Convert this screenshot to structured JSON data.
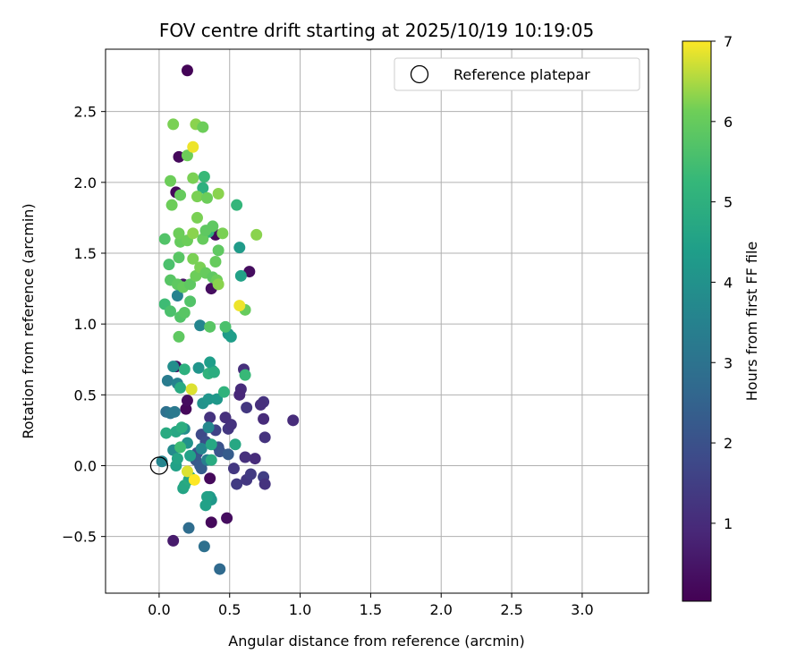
{
  "chart_data": {
    "type": "scatter",
    "title": "FOV centre drift starting at 2025/10/19 10:19:05",
    "xlabel": "Angular distance from reference (arcmin)",
    "ylabel": "Rotation from reference (arcmin)",
    "xlim": [
      -0.38,
      3.47
    ],
    "ylim": [
      -0.9,
      2.94
    ],
    "xticks": [
      0.0,
      0.5,
      1.0,
      1.5,
      2.0,
      2.5,
      3.0
    ],
    "xtick_labels": [
      "0.0",
      "0.5",
      "1.0",
      "1.5",
      "2.0",
      "2.5",
      "3.0"
    ],
    "yticks": [
      -0.5,
      0.0,
      0.5,
      1.0,
      1.5,
      2.0,
      2.5
    ],
    "ytick_labels": [
      "−0.5",
      "0.0",
      "0.5",
      "1.0",
      "1.5",
      "2.0",
      "2.5"
    ],
    "grid": true,
    "legend": {
      "position": "top-right",
      "entries": [
        "Reference platepar"
      ]
    },
    "colorbar": {
      "label": "Hours from first FF file",
      "colormap": "viridis",
      "range": [
        0.03,
        7.0
      ],
      "ticks": [
        1,
        2,
        3,
        4,
        5,
        6,
        7
      ],
      "tick_labels": [
        "1",
        "2",
        "3",
        "4",
        "5",
        "6",
        "7"
      ]
    },
    "reference_point": {
      "x": 0.0,
      "y": 0.0
    },
    "points": [
      {
        "x": 0.2,
        "y": 2.79,
        "h": 0.1
      },
      {
        "x": 0.14,
        "y": 2.18,
        "h": 0.2
      },
      {
        "x": 0.12,
        "y": 1.93,
        "h": 0.2
      },
      {
        "x": 0.4,
        "y": 1.63,
        "h": 0.2
      },
      {
        "x": 0.64,
        "y": 1.37,
        "h": 0.3
      },
      {
        "x": 0.17,
        "y": 1.28,
        "h": 0.4
      },
      {
        "x": 0.37,
        "y": 1.25,
        "h": 0.3
      },
      {
        "x": 0.12,
        "y": 0.7,
        "h": 0.3
      },
      {
        "x": 0.19,
        "y": 0.4,
        "h": 0.2
      },
      {
        "x": 0.2,
        "y": 0.46,
        "h": 0.3
      },
      {
        "x": 0.36,
        "y": -0.09,
        "h": 0.2
      },
      {
        "x": 0.37,
        "y": -0.4,
        "h": 0.2
      },
      {
        "x": 0.48,
        "y": -0.37,
        "h": 0.3
      },
      {
        "x": 0.1,
        "y": -0.53,
        "h": 0.6
      },
      {
        "x": 0.95,
        "y": 0.32,
        "h": 1.0
      },
      {
        "x": 0.74,
        "y": 0.45,
        "h": 1.2
      },
      {
        "x": 0.72,
        "y": 0.43,
        "h": 1.1
      },
      {
        "x": 0.74,
        "y": 0.33,
        "h": 1.0
      },
      {
        "x": 0.75,
        "y": 0.2,
        "h": 1.2
      },
      {
        "x": 0.68,
        "y": 0.05,
        "h": 1.0
      },
      {
        "x": 0.61,
        "y": 0.06,
        "h": 1.1
      },
      {
        "x": 0.58,
        "y": 0.54,
        "h": 1.0
      },
      {
        "x": 0.57,
        "y": 0.5,
        "h": 0.9
      },
      {
        "x": 0.6,
        "y": 0.68,
        "h": 1.1
      },
      {
        "x": 0.62,
        "y": 0.41,
        "h": 1.3
      },
      {
        "x": 0.49,
        "y": 0.26,
        "h": 1.3
      },
      {
        "x": 0.51,
        "y": 0.29,
        "h": 1.2
      },
      {
        "x": 0.47,
        "y": 0.34,
        "h": 1.1
      },
      {
        "x": 0.53,
        "y": -0.02,
        "h": 1.3
      },
      {
        "x": 0.55,
        "y": -0.13,
        "h": 1.4
      },
      {
        "x": 0.62,
        "y": -0.1,
        "h": 1.3
      },
      {
        "x": 0.65,
        "y": -0.06,
        "h": 1.4
      },
      {
        "x": 0.74,
        "y": -0.08,
        "h": 1.5
      },
      {
        "x": 0.75,
        "y": -0.13,
        "h": 1.2
      },
      {
        "x": 0.36,
        "y": 0.34,
        "h": 1.2
      },
      {
        "x": 0.4,
        "y": 0.25,
        "h": 1.6
      },
      {
        "x": 0.3,
        "y": 0.22,
        "h": 1.8
      },
      {
        "x": 0.33,
        "y": 0.17,
        "h": 1.9
      },
      {
        "x": 0.42,
        "y": 0.13,
        "h": 2.0
      },
      {
        "x": 0.27,
        "y": 0.09,
        "h": 2.0
      },
      {
        "x": 0.43,
        "y": 0.1,
        "h": 2.1
      },
      {
        "x": 0.49,
        "y": 0.08,
        "h": 2.3
      },
      {
        "x": 0.26,
        "y": 0.04,
        "h": 2.2
      },
      {
        "x": 0.29,
        "y": 0.0,
        "h": 2.3
      },
      {
        "x": 0.3,
        "y": -0.02,
        "h": 2.3
      },
      {
        "x": 0.21,
        "y": -0.44,
        "h": 2.8
      },
      {
        "x": 0.32,
        "y": -0.57,
        "h": 2.9
      },
      {
        "x": 0.43,
        "y": -0.73,
        "h": 2.7
      },
      {
        "x": 0.05,
        "y": 0.38,
        "h": 2.9
      },
      {
        "x": 0.08,
        "y": 0.37,
        "h": 3.1
      },
      {
        "x": 0.11,
        "y": 0.38,
        "h": 3.2
      },
      {
        "x": 0.06,
        "y": 0.6,
        "h": 3.3
      },
      {
        "x": 0.13,
        "y": 0.58,
        "h": 3.5
      },
      {
        "x": 0.13,
        "y": 1.2,
        "h": 3.5
      },
      {
        "x": 0.29,
        "y": 0.99,
        "h": 3.6
      },
      {
        "x": 0.16,
        "y": 0.26,
        "h": 3.6
      },
      {
        "x": 0.3,
        "y": 0.12,
        "h": 3.6
      },
      {
        "x": 0.34,
        "y": 0.04,
        "h": 3.4
      },
      {
        "x": 0.35,
        "y": 0.27,
        "h": 3.7
      },
      {
        "x": 0.02,
        "y": 0.03,
        "h": 3.6
      },
      {
        "x": 0.1,
        "y": 0.11,
        "h": 3.8
      },
      {
        "x": 0.18,
        "y": 0.26,
        "h": 3.9
      },
      {
        "x": 0.2,
        "y": 0.16,
        "h": 4.0
      },
      {
        "x": 0.31,
        "y": 0.44,
        "h": 4.0
      },
      {
        "x": 0.35,
        "y": 0.47,
        "h": 4.1
      },
      {
        "x": 0.41,
        "y": 0.47,
        "h": 4.2
      },
      {
        "x": 0.28,
        "y": 0.69,
        "h": 4.1
      },
      {
        "x": 0.1,
        "y": 0.7,
        "h": 3.9
      },
      {
        "x": 0.38,
        "y": 0.67,
        "h": 4.3
      },
      {
        "x": 0.49,
        "y": 0.93,
        "h": 4.2
      },
      {
        "x": 0.51,
        "y": 0.91,
        "h": 4.4
      },
      {
        "x": 0.57,
        "y": 1.54,
        "h": 4.3
      },
      {
        "x": 0.58,
        "y": 1.34,
        "h": 4.5
      },
      {
        "x": 0.36,
        "y": 0.73,
        "h": 4.4
      },
      {
        "x": 0.36,
        "y": -0.22,
        "h": 4.3
      },
      {
        "x": 0.37,
        "y": -0.24,
        "h": 4.2
      },
      {
        "x": 0.34,
        "y": -0.22,
        "h": 4.5
      },
      {
        "x": 0.33,
        "y": -0.28,
        "h": 4.5
      },
      {
        "x": 0.17,
        "y": -0.16,
        "h": 4.6
      },
      {
        "x": 0.18,
        "y": -0.14,
        "h": 4.7
      },
      {
        "x": 0.21,
        "y": -0.1,
        "h": 4.8
      },
      {
        "x": 0.22,
        "y": -0.08,
        "h": 4.6
      },
      {
        "x": 0.12,
        "y": 0.0,
        "h": 4.5
      },
      {
        "x": 0.13,
        "y": 0.05,
        "h": 4.6
      },
      {
        "x": 0.22,
        "y": 0.07,
        "h": 4.5
      },
      {
        "x": 0.37,
        "y": 0.15,
        "h": 4.7
      },
      {
        "x": 0.37,
        "y": 0.04,
        "h": 4.8
      },
      {
        "x": 0.54,
        "y": 0.15,
        "h": 4.7
      },
      {
        "x": 0.12,
        "y": 0.24,
        "h": 4.7
      },
      {
        "x": 0.05,
        "y": 0.23,
        "h": 4.8
      },
      {
        "x": 0.16,
        "y": 0.27,
        "h": 4.9
      },
      {
        "x": 0.15,
        "y": 0.55,
        "h": 4.8
      },
      {
        "x": 0.18,
        "y": 0.68,
        "h": 5.0
      },
      {
        "x": 0.35,
        "y": 0.65,
        "h": 5.1
      },
      {
        "x": 0.39,
        "y": 0.66,
        "h": 4.9
      },
      {
        "x": 0.46,
        "y": 0.52,
        "h": 5.1
      },
      {
        "x": 0.55,
        "y": 1.84,
        "h": 5.2
      },
      {
        "x": 0.31,
        "y": 1.96,
        "h": 5.0
      },
      {
        "x": 0.35,
        "y": 1.65,
        "h": 5.1
      },
      {
        "x": 0.32,
        "y": 2.04,
        "h": 5.3
      },
      {
        "x": 0.61,
        "y": 0.64,
        "h": 5.3
      },
      {
        "x": 0.04,
        "y": 1.14,
        "h": 5.4
      },
      {
        "x": 0.15,
        "y": 0.13,
        "h": 5.4
      },
      {
        "x": 0.08,
        "y": 1.09,
        "h": 5.6
      },
      {
        "x": 0.15,
        "y": 1.05,
        "h": 5.7
      },
      {
        "x": 0.18,
        "y": 1.08,
        "h": 5.8
      },
      {
        "x": 0.22,
        "y": 1.16,
        "h": 5.7
      },
      {
        "x": 0.36,
        "y": 0.98,
        "h": 5.8
      },
      {
        "x": 0.47,
        "y": 0.98,
        "h": 5.6
      },
      {
        "x": 0.14,
        "y": 0.91,
        "h": 5.9
      },
      {
        "x": 0.61,
        "y": 1.1,
        "h": 6.0
      },
      {
        "x": 0.07,
        "y": 1.42,
        "h": 5.6
      },
      {
        "x": 0.04,
        "y": 1.6,
        "h": 5.7
      },
      {
        "x": 0.08,
        "y": 1.31,
        "h": 5.8
      },
      {
        "x": 0.13,
        "y": 1.28,
        "h": 5.9
      },
      {
        "x": 0.17,
        "y": 1.26,
        "h": 6.0
      },
      {
        "x": 0.22,
        "y": 1.28,
        "h": 5.9
      },
      {
        "x": 0.26,
        "y": 1.34,
        "h": 6.1
      },
      {
        "x": 0.29,
        "y": 1.4,
        "h": 6.2
      },
      {
        "x": 0.33,
        "y": 1.36,
        "h": 6.0
      },
      {
        "x": 0.38,
        "y": 1.33,
        "h": 5.9
      },
      {
        "x": 0.41,
        "y": 1.31,
        "h": 6.1
      },
      {
        "x": 0.42,
        "y": 1.28,
        "h": 6.3
      },
      {
        "x": 0.4,
        "y": 1.44,
        "h": 6.0
      },
      {
        "x": 0.42,
        "y": 1.52,
        "h": 5.9
      },
      {
        "x": 0.24,
        "y": 1.46,
        "h": 6.2
      },
      {
        "x": 0.14,
        "y": 1.47,
        "h": 5.8
      },
      {
        "x": 0.15,
        "y": 1.58,
        "h": 6.0
      },
      {
        "x": 0.2,
        "y": 1.59,
        "h": 6.1
      },
      {
        "x": 0.24,
        "y": 1.64,
        "h": 6.3
      },
      {
        "x": 0.31,
        "y": 1.6,
        "h": 6.0
      },
      {
        "x": 0.33,
        "y": 1.66,
        "h": 5.9
      },
      {
        "x": 0.45,
        "y": 1.64,
        "h": 6.2
      },
      {
        "x": 0.38,
        "y": 1.69,
        "h": 5.9
      },
      {
        "x": 0.14,
        "y": 1.64,
        "h": 6.1
      },
      {
        "x": 0.69,
        "y": 1.63,
        "h": 6.3
      },
      {
        "x": 0.27,
        "y": 1.75,
        "h": 6.2
      },
      {
        "x": 0.09,
        "y": 1.84,
        "h": 6.1
      },
      {
        "x": 0.15,
        "y": 1.91,
        "h": 6.0
      },
      {
        "x": 0.27,
        "y": 1.9,
        "h": 6.2
      },
      {
        "x": 0.34,
        "y": 1.89,
        "h": 6.1
      },
      {
        "x": 0.42,
        "y": 1.92,
        "h": 6.3
      },
      {
        "x": 0.08,
        "y": 2.01,
        "h": 6.1
      },
      {
        "x": 0.24,
        "y": 2.03,
        "h": 6.2
      },
      {
        "x": 0.2,
        "y": 2.19,
        "h": 6.1
      },
      {
        "x": 0.1,
        "y": 2.41,
        "h": 6.2
      },
      {
        "x": 0.26,
        "y": 2.41,
        "h": 6.3
      },
      {
        "x": 0.31,
        "y": 2.39,
        "h": 6.1
      },
      {
        "x": 0.24,
        "y": 2.25,
        "h": 6.9
      },
      {
        "x": 0.57,
        "y": 1.13,
        "h": 6.9
      },
      {
        "x": 0.23,
        "y": 0.54,
        "h": 6.8
      },
      {
        "x": 0.2,
        "y": -0.04,
        "h": 6.8
      },
      {
        "x": 0.25,
        "y": -0.1,
        "h": 7.0
      }
    ]
  }
}
